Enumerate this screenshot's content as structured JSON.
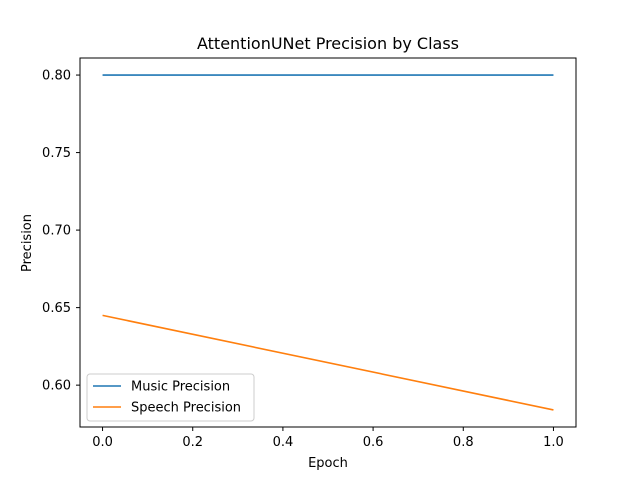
{
  "chart_data": {
    "type": "line",
    "title": "AttentionUNet Precision by Class",
    "xlabel": "Epoch",
    "ylabel": "Precision",
    "xlim": [
      -0.05,
      1.05
    ],
    "ylim": [
      0.573,
      0.811
    ],
    "xticks": [
      "0.0",
      "0.2",
      "0.4",
      "0.6",
      "0.8",
      "1.0"
    ],
    "yticks": [
      "0.60",
      "0.65",
      "0.70",
      "0.75",
      "0.80"
    ],
    "grid": false,
    "legend_position": "lower-left",
    "series": [
      {
        "name": "Music Precision",
        "color": "#1f77b4",
        "x": [
          0,
          1
        ],
        "y": [
          0.8,
          0.8
        ]
      },
      {
        "name": "Speech Precision",
        "color": "#ff7f0e",
        "x": [
          0,
          1
        ],
        "y": [
          0.645,
          0.584
        ]
      }
    ]
  }
}
